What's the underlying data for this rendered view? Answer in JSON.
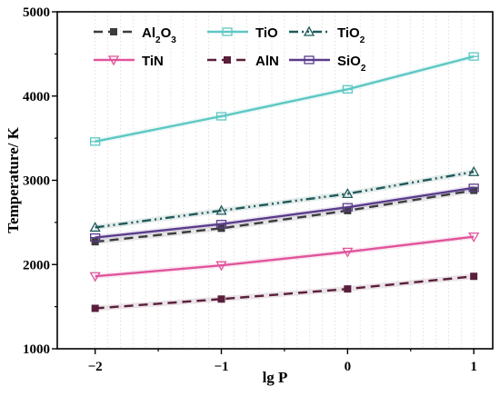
{
  "chart_data": {
    "type": "line",
    "xlabel": "lg P",
    "ylabel": "Temperature/ K",
    "xlim": [
      -2.3,
      1.15
    ],
    "ylim": [
      1000,
      5000
    ],
    "xticks": [
      -2,
      -1,
      0,
      1
    ],
    "xtick_labels": [
      "−2",
      "−1",
      "0",
      "1"
    ],
    "yticks": [
      1000,
      2000,
      3000,
      4000,
      5000
    ],
    "ytick_labels": [
      "1000",
      "2000",
      "3000",
      "4000",
      "5000"
    ],
    "grid": "vertical dotted lines",
    "legend_position": "top-left, 3 columns, 2 rows",
    "x": [
      -2,
      -1,
      0,
      1
    ],
    "series": [
      {
        "name": "Al2O3",
        "label_main": "Al",
        "label_parts": [
          [
            "Al",
            ""
          ],
          [
            "2",
            "sub"
          ],
          [
            "O",
            ""
          ],
          [
            "3",
            "sub"
          ]
        ],
        "values": [
          2270,
          2430,
          2640,
          2880
        ],
        "color": "#3c3c3c",
        "dash": "10,6",
        "marker": "square"
      },
      {
        "name": "TiO",
        "label_parts": [
          [
            "TiO",
            ""
          ]
        ],
        "values": [
          3460,
          3760,
          4080,
          4470
        ],
        "color": "#5ec8c4",
        "dash": "",
        "marker": "hline"
      },
      {
        "name": "TiO2",
        "label_parts": [
          [
            "TiO",
            ""
          ],
          [
            "2",
            "sub"
          ]
        ],
        "values": [
          2440,
          2640,
          2840,
          3100
        ],
        "color": "#1f5a5a",
        "dash": "10,4,2,4,2,4",
        "marker": "triangle"
      },
      {
        "name": "TiN",
        "label_parts": [
          [
            "TiN",
            ""
          ]
        ],
        "values": [
          1860,
          1990,
          2150,
          2330
        ],
        "color": "#e0559c",
        "dash": "",
        "marker": "triangle-down"
      },
      {
        "name": "AlN",
        "label_parts": [
          [
            "AlN",
            ""
          ]
        ],
        "values": [
          1480,
          1590,
          1710,
          1860
        ],
        "color": "#5a1f3c",
        "dash": "10,6",
        "marker": "square"
      },
      {
        "name": "SiO2",
        "label_parts": [
          [
            "SiO",
            ""
          ],
          [
            "2",
            "sub"
          ]
        ],
        "values": [
          2320,
          2480,
          2680,
          2910
        ],
        "color": "#5a3c8c",
        "dash": "",
        "marker": "hline"
      }
    ]
  }
}
